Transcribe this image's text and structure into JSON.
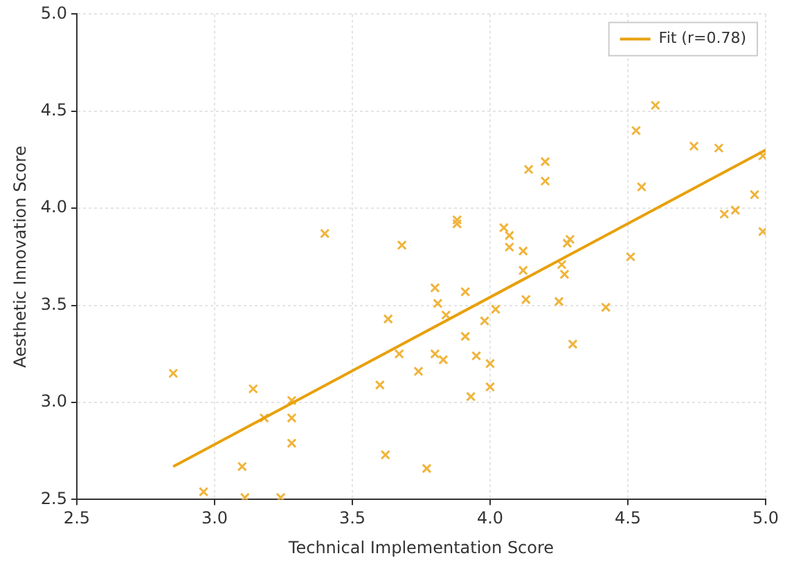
{
  "chart_data": {
    "type": "scatter",
    "xlabel": "Technical Implementation Score",
    "ylabel": "Aesthetic Innovation Score",
    "xlim": [
      2.5,
      5.0
    ],
    "ylim": [
      2.5,
      5.0
    ],
    "xticks": [
      {
        "value": 2.5,
        "label": "2.5"
      },
      {
        "value": 3,
        "label": "3.0"
      },
      {
        "value": 3.5,
        "label": "3.5"
      },
      {
        "value": 4,
        "label": "4.0"
      },
      {
        "value": 4.5,
        "label": "4.5"
      },
      {
        "value": 5,
        "label": "5.0"
      }
    ],
    "yticks": [
      {
        "value": 2.5,
        "label": "2.5"
      },
      {
        "value": 3,
        "label": "3.0"
      },
      {
        "value": 3.5,
        "label": "3.5"
      },
      {
        "value": 4,
        "label": "4.0"
      },
      {
        "value": 4.5,
        "label": "4.5"
      },
      {
        "value": 5,
        "label": "5.0"
      }
    ],
    "grid": true,
    "legend": "top right",
    "marker": "cross",
    "series": [
      {
        "type": "scatter",
        "color": "#f0b43c",
        "x": [
          2.85,
          2.96,
          3.11,
          3.14,
          3.18,
          3.28,
          3.28,
          3.28,
          3.24,
          3.1,
          3.4,
          3.68,
          3.63,
          3.67,
          3.6,
          3.62,
          3.74,
          3.77,
          3.8,
          3.81,
          3.8,
          3.83,
          3.84,
          3.88,
          3.88,
          3.91,
          3.91,
          3.95,
          3.93,
          3.98,
          4.0,
          4.0,
          4.02,
          4.05,
          4.07,
          4.07,
          4.12,
          4.12,
          4.13,
          4.14,
          4.2,
          4.2,
          4.25,
          4.26,
          4.27,
          4.28,
          4.29,
          4.3,
          4.42,
          4.51,
          4.53,
          4.55,
          4.6,
          4.74,
          4.83,
          4.85,
          4.89,
          4.96,
          4.99,
          4.99
        ],
        "values": [
          3.15,
          2.54,
          2.51,
          3.07,
          2.92,
          3.01,
          2.92,
          2.79,
          2.51,
          2.67,
          3.87,
          3.81,
          3.43,
          3.25,
          3.09,
          2.73,
          3.16,
          2.66,
          3.59,
          3.51,
          3.25,
          3.22,
          3.45,
          3.92,
          3.94,
          3.57,
          3.34,
          3.24,
          3.03,
          3.42,
          3.2,
          3.08,
          3.48,
          3.9,
          3.86,
          3.8,
          3.78,
          3.68,
          3.53,
          4.2,
          4.24,
          4.14,
          3.52,
          3.71,
          3.66,
          3.82,
          3.84,
          3.3,
          3.49,
          3.75,
          4.4,
          4.11,
          4.53,
          4.32,
          4.31,
          3.97,
          3.99,
          4.07,
          4.27,
          3.88
        ]
      },
      {
        "type": "line",
        "name": "Fit (r=0.78)",
        "color": "#e8a00c",
        "marker": "none",
        "line_style": "solid",
        "x": [
          2.85,
          5.0
        ],
        "values": [
          2.67,
          4.3
        ]
      }
    ]
  }
}
